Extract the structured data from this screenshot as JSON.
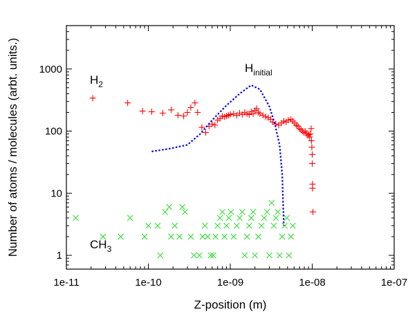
{
  "chart_data": {
    "type": "scatter",
    "title": "",
    "xlabel": "Z-position (m)",
    "ylabel": "Number of atoms / molecules (arbt. units.)",
    "xscale": "log",
    "yscale": "log",
    "xlim": [
      1e-11,
      1e-07
    ],
    "ylim": [
      0.6,
      5000
    ],
    "xticks": [
      "1e-11",
      "1e-10",
      "1e-09",
      "1e-08",
      "1e-07"
    ],
    "yticks": [
      "1",
      "10",
      "100",
      "1000"
    ],
    "grid": false,
    "legend": "none",
    "annotations": {
      "h2": {
        "main": "H",
        "sub": "2"
      },
      "ch3": {
        "main": "CH",
        "sub": "3"
      },
      "h_initial": {
        "main": "H",
        "sub": "initial"
      }
    },
    "series": [
      {
        "label_ref": "h2",
        "marker": "plus",
        "color": "#ff0000",
        "points": [
          [
            2.1e-11,
            340
          ],
          [
            5.6e-11,
            285
          ],
          [
            8.5e-11,
            210
          ],
          [
            1.1e-10,
            205
          ],
          [
            1.5e-10,
            195
          ],
          [
            1.9e-10,
            220
          ],
          [
            2.3e-10,
            180
          ],
          [
            2.7e-10,
            175
          ],
          [
            3e-10,
            200
          ],
          [
            3.3e-10,
            240
          ],
          [
            3.7e-10,
            285
          ],
          [
            4e-10,
            200
          ],
          [
            4.5e-10,
            115
          ],
          [
            5e-10,
            95
          ],
          [
            5.5e-10,
            120
          ],
          [
            6e-10,
            130
          ],
          [
            6.5e-10,
            125
          ],
          [
            7e-10,
            150
          ],
          [
            7.5e-10,
            160
          ],
          [
            8e-10,
            175
          ],
          [
            8.5e-10,
            170
          ],
          [
            9e-10,
            175
          ],
          [
            9.5e-10,
            180
          ],
          [
            1e-09,
            185
          ],
          [
            1.1e-09,
            190
          ],
          [
            1.2e-09,
            180
          ],
          [
            1.3e-09,
            195
          ],
          [
            1.4e-09,
            185
          ],
          [
            1.5e-09,
            200
          ],
          [
            1.6e-09,
            190
          ],
          [
            1.7e-09,
            185
          ],
          [
            1.8e-09,
            205
          ],
          [
            1.9e-09,
            190
          ],
          [
            2e-09,
            215
          ],
          [
            2.1e-09,
            230
          ],
          [
            2.2e-09,
            200
          ],
          [
            2.3e-09,
            190
          ],
          [
            2.5e-09,
            180
          ],
          [
            2.7e-09,
            170
          ],
          [
            2.9e-09,
            165
          ],
          [
            3.1e-09,
            155
          ],
          [
            3.3e-09,
            140
          ],
          [
            3.6e-09,
            130
          ],
          [
            3.9e-09,
            125
          ],
          [
            4.2e-09,
            135
          ],
          [
            4.5e-09,
            145
          ],
          [
            4.8e-09,
            140
          ],
          [
            5.1e-09,
            150
          ],
          [
            5.5e-09,
            155
          ],
          [
            5.8e-09,
            145
          ],
          [
            6.1e-09,
            135
          ],
          [
            6.4e-09,
            125
          ],
          [
            6.7e-09,
            120
          ],
          [
            7e-09,
            110
          ],
          [
            7.3e-09,
            105
          ],
          [
            7.6e-09,
            100
          ],
          [
            7.9e-09,
            95
          ],
          [
            8.2e-09,
            100
          ],
          [
            8.5e-09,
            92
          ],
          [
            8.8e-09,
            85
          ],
          [
            9.1e-09,
            88
          ],
          [
            9.3e-09,
            80
          ],
          [
            9.5e-09,
            90
          ],
          [
            9.7e-09,
            110
          ],
          [
            9.8e-09,
            70
          ],
          [
            9.9e-09,
            55
          ],
          [
            1e-08,
            42
          ],
          [
            1e-08,
            30
          ],
          [
            1.01e-08,
            14
          ],
          [
            1.01e-08,
            12
          ],
          [
            1.02e-08,
            5
          ]
        ]
      },
      {
        "label_ref": "ch3",
        "marker": "cross",
        "color": "#33dd33",
        "points": [
          [
            1.3e-11,
            4
          ],
          [
            2.8e-11,
            2
          ],
          [
            4.6e-11,
            2
          ],
          [
            6e-11,
            4
          ],
          [
            9e-11,
            2
          ],
          [
            1e-10,
            3
          ],
          [
            1.3e-10,
            3
          ],
          [
            1.4e-10,
            1
          ],
          [
            1.6e-10,
            5
          ],
          [
            1.8e-10,
            6
          ],
          [
            1.9e-10,
            2
          ],
          [
            2.1e-10,
            3
          ],
          [
            2.4e-10,
            2
          ],
          [
            2.6e-10,
            6
          ],
          [
            2.8e-10,
            5
          ],
          [
            3.3e-10,
            2
          ],
          [
            3.6e-10,
            1
          ],
          [
            4.2e-10,
            1
          ],
          [
            4.6e-10,
            2
          ],
          [
            4.9e-10,
            3
          ],
          [
            5.3e-10,
            2
          ],
          [
            5.8e-10,
            1
          ],
          [
            6.2e-10,
            1
          ],
          [
            6.6e-10,
            2
          ],
          [
            7e-10,
            3
          ],
          [
            7.5e-10,
            4
          ],
          [
            8e-10,
            5
          ],
          [
            8.5e-10,
            2
          ],
          [
            9e-10,
            3
          ],
          [
            9.6e-10,
            4
          ],
          [
            1.02e-09,
            5
          ],
          [
            1.1e-09,
            2
          ],
          [
            1.2e-09,
            3
          ],
          [
            1.3e-09,
            4
          ],
          [
            1.4e-09,
            5
          ],
          [
            1.5e-09,
            1
          ],
          [
            1.6e-09,
            2
          ],
          [
            1.7e-09,
            3
          ],
          [
            1.8e-09,
            4
          ],
          [
            1.9e-09,
            5
          ],
          [
            2e-09,
            1
          ],
          [
            2.2e-09,
            2
          ],
          [
            2.4e-09,
            3
          ],
          [
            2.6e-09,
            4
          ],
          [
            2.8e-09,
            5
          ],
          [
            3e-09,
            1
          ],
          [
            3.2e-09,
            7
          ],
          [
            3.4e-09,
            3
          ],
          [
            3.6e-09,
            4
          ],
          [
            3.8e-09,
            5
          ],
          [
            4e-09,
            1
          ],
          [
            4.3e-09,
            2
          ],
          [
            4.6e-09,
            3
          ],
          [
            4.9e-09,
            4
          ],
          [
            5.2e-09,
            1
          ],
          [
            5.5e-09,
            2
          ],
          [
            5.8e-09,
            3
          ]
        ]
      },
      {
        "label_ref": "h_initial",
        "marker": "none",
        "line_style": "dotted",
        "color": "#0000ee",
        "points": [
          [
            1.1e-10,
            47
          ],
          [
            1.8e-10,
            52
          ],
          [
            3e-10,
            60
          ],
          [
            4.3e-10,
            90
          ],
          [
            6e-10,
            150
          ],
          [
            9e-10,
            260
          ],
          [
            1.3e-09,
            400
          ],
          [
            1.8e-09,
            550
          ],
          [
            2.3e-09,
            470
          ],
          [
            3e-09,
            250
          ],
          [
            3.5e-09,
            130
          ],
          [
            4e-09,
            60
          ],
          [
            4.3e-09,
            20
          ],
          [
            4.5e-09,
            3
          ]
        ]
      }
    ]
  }
}
